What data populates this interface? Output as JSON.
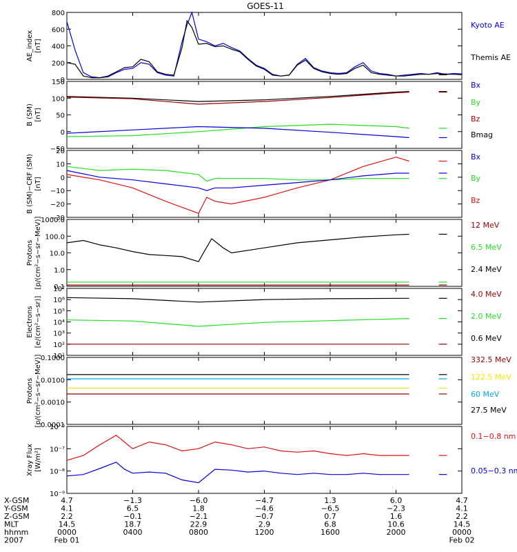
{
  "title": "GOES-11",
  "colors": {
    "black": "#000000",
    "blue": "#0000dd",
    "green": "#22dd22",
    "red": "#dd1111",
    "darkred": "#990000",
    "cyan": "#00a8f0",
    "yellow": "#f2e600",
    "axis": "#000000"
  },
  "chart_data": [
    {
      "id": "ae",
      "type": "line",
      "ylabel_lines": [
        "AE_index",
        "[nT]"
      ],
      "yscale": "linear",
      "ylim": [
        0,
        800
      ],
      "yticks": [
        "0",
        "200",
        "400",
        "600",
        "800"
      ],
      "ytick_values": [
        0,
        200,
        400,
        600,
        800
      ],
      "series": [
        {
          "name": "Kyoto AE",
          "color": "blue",
          "x": [
            0.0,
            0.5,
            1.0,
            1.5,
            2.0,
            2.5,
            3.0,
            3.5,
            4.0,
            4.5,
            5.0,
            5.5,
            6.0,
            6.5,
            7.0,
            7.3,
            7.6,
            8.0,
            8.5,
            9.0,
            9.5,
            10.0,
            10.5,
            11.0,
            11.5,
            12.0,
            12.5,
            13.0,
            13.5,
            14.0,
            14.5,
            15.0,
            15.5,
            16.0,
            16.5,
            17.0,
            17.5,
            18.0,
            18.5,
            19.0,
            19.5,
            20.0,
            20.5,
            21.0,
            21.5,
            22.0,
            22.5,
            23.0,
            23.5,
            24.0
          ],
          "y": [
            690,
            350,
            80,
            30,
            20,
            30,
            80,
            120,
            130,
            200,
            180,
            80,
            50,
            40,
            450,
            650,
            800,
            480,
            450,
            400,
            430,
            380,
            340,
            250,
            170,
            130,
            60,
            40,
            50,
            180,
            250,
            140,
            100,
            80,
            70,
            80,
            150,
            200,
            100,
            70,
            60,
            40,
            50,
            60,
            70,
            60,
            80,
            60,
            70,
            65
          ]
        },
        {
          "name": "Themis AE",
          "color": "black",
          "x": [
            0.0,
            0.5,
            1.0,
            1.5,
            2.0,
            2.5,
            3.0,
            3.5,
            4.0,
            4.5,
            5.0,
            5.5,
            6.0,
            6.5,
            7.0,
            7.3,
            7.6,
            8.0,
            8.5,
            9.0,
            9.5,
            10.0,
            10.5,
            11.0,
            11.5,
            12.0,
            12.5,
            13.0,
            13.5,
            14.0,
            14.5,
            15.0,
            15.5,
            16.0,
            16.5,
            17.0,
            17.5,
            18.0,
            18.5,
            19.0,
            19.5,
            20.0,
            20.5,
            21.0,
            21.5,
            22.0,
            22.5,
            23.0,
            23.5,
            24.0
          ],
          "y": [
            200,
            180,
            40,
            20,
            20,
            40,
            90,
            140,
            150,
            240,
            210,
            90,
            60,
            50,
            380,
            700,
            620,
            420,
            430,
            390,
            400,
            360,
            330,
            240,
            160,
            120,
            50,
            40,
            50,
            170,
            230,
            130,
            90,
            70,
            60,
            70,
            130,
            170,
            80,
            60,
            50,
            40,
            40,
            50,
            60,
            60,
            70,
            60,
            60,
            55
          ]
        }
      ]
    },
    {
      "id": "b_sm",
      "type": "line",
      "ylabel_lines": [
        "B (SM)",
        "[nT]"
      ],
      "yscale": "linear",
      "ylim": [
        -50,
        150
      ],
      "yticks": [
        "−50",
        "0",
        "50",
        "100",
        "150"
      ],
      "ytick_values": [
        -50,
        0,
        50,
        100,
        150
      ],
      "series": [
        {
          "name": "Bmag",
          "color": "black",
          "x": [
            0,
            4,
            8,
            12,
            16,
            20,
            20.8
          ],
          "y": [
            105,
            100,
            90,
            95,
            105,
            118,
            120
          ]
        },
        {
          "name": "Bz",
          "color": "darkred",
          "x": [
            0,
            4,
            8,
            12,
            16,
            20,
            20.8
          ],
          "y": [
            103,
            98,
            82,
            90,
            102,
            116,
            118
          ]
        },
        {
          "name": "By",
          "color": "green",
          "x": [
            0,
            4,
            8,
            12,
            16,
            20,
            20.8
          ],
          "y": [
            -15,
            -12,
            0,
            15,
            22,
            15,
            10
          ]
        },
        {
          "name": "Bx",
          "color": "blue",
          "x": [
            0,
            4,
            8,
            12,
            16,
            20,
            20.8
          ],
          "y": [
            -5,
            5,
            15,
            10,
            -2,
            -15,
            -18
          ]
        }
      ],
      "legend": [
        "Bx",
        "By",
        "Bz",
        "Bmag"
      ]
    },
    {
      "id": "b_crf",
      "type": "line",
      "ylabel_lines": [
        "B (SM)−CRF (SM)",
        "[nT]"
      ],
      "yscale": "linear",
      "ylim": [
        -30,
        20
      ],
      "yticks": [
        "−30",
        "−20",
        "−10",
        "0",
        "10",
        "20"
      ],
      "ytick_values": [
        -30,
        -20,
        -10,
        0,
        10,
        20
      ],
      "series": [
        {
          "name": "Bz",
          "color": "red",
          "x": [
            0,
            2,
            4,
            6,
            8,
            8.5,
            9,
            10,
            12,
            14,
            16,
            18,
            20,
            20.8
          ],
          "y": [
            2,
            -2,
            -8,
            -18,
            -27,
            -15,
            -18,
            -20,
            -15,
            -8,
            -2,
            8,
            15,
            12
          ]
        },
        {
          "name": "By",
          "color": "green",
          "x": [
            0,
            2,
            4,
            6,
            8,
            8.5,
            9,
            10,
            12,
            14,
            16,
            18,
            20,
            20.8
          ],
          "y": [
            8,
            5,
            6,
            5,
            2,
            -3,
            -1,
            -1,
            -1,
            -2,
            -2,
            -1,
            -1,
            -1
          ]
        },
        {
          "name": "Bx",
          "color": "blue",
          "x": [
            0,
            2,
            4,
            6,
            8,
            8.5,
            9,
            10,
            12,
            14,
            16,
            18,
            20,
            20.8
          ],
          "y": [
            5,
            0,
            -2,
            -5,
            -8,
            -10,
            -8,
            -8,
            -6,
            -4,
            -2,
            1,
            3,
            3
          ]
        }
      ],
      "legend": [
        "Bx",
        "By",
        "Bz"
      ]
    },
    {
      "id": "protons_low",
      "type": "line",
      "ylabel_lines": [
        "Protons",
        "[p/(cm²−s−sr−MeV)]"
      ],
      "yscale": "log",
      "ylim": [
        0.1,
        1000
      ],
      "yticks": [
        "0.1",
        "1.0",
        "10.0",
        "100.0",
        "1000.0"
      ],
      "ytick_values": [
        0.1,
        1,
        10,
        100,
        1000
      ],
      "series": [
        {
          "name": "2.4 MeV",
          "color": "black",
          "x": [
            0,
            1,
            2,
            3,
            4,
            5,
            6,
            7,
            8,
            8.4,
            8.8,
            9.5,
            10,
            12,
            14,
            16,
            18,
            20,
            20.8
          ],
          "y": [
            40,
            55,
            30,
            20,
            12,
            8,
            7,
            6,
            3,
            15,
            70,
            20,
            10,
            20,
            40,
            60,
            90,
            120,
            130
          ]
        },
        {
          "name": "6.5 MeV",
          "color": "green",
          "x": [
            0,
            20.8
          ],
          "y": [
            0.18,
            0.18
          ]
        },
        {
          "name": "12 MeV",
          "color": "darkred",
          "x": [
            0,
            20.8
          ],
          "y": [
            0.12,
            0.12
          ]
        }
      ],
      "legend": [
        "12 MeV",
        "6.5 MeV",
        "2.4 MeV"
      ]
    },
    {
      "id": "electrons",
      "type": "line",
      "ylabel_lines": [
        "Electrons",
        "[e/(cm²−s−sr)]"
      ],
      "yscale": "log",
      "ylim": [
        10,
        10000000
      ],
      "yticks": [
        "10¹",
        "10²",
        "10³",
        "10⁴",
        "10⁵",
        "10⁶",
        "10⁷"
      ],
      "ytick_values": [
        10,
        100,
        1000,
        10000,
        100000,
        1000000,
        10000000
      ],
      "series": [
        {
          "name": "0.6 MeV",
          "color": "black",
          "x": [
            0,
            4,
            8,
            12,
            16,
            20.8
          ],
          "y": [
            1500000,
            1200000,
            600000,
            1000000,
            1200000,
            1300000
          ]
        },
        {
          "name": "2.0 MeV",
          "color": "green",
          "x": [
            0,
            4,
            8,
            12,
            16,
            20.8
          ],
          "y": [
            15000,
            12000,
            4000,
            9000,
            13000,
            20000
          ]
        },
        {
          "name": "4.0 MeV",
          "color": "darkred",
          "x": [
            0,
            20.8
          ],
          "y": [
            100,
            100
          ]
        }
      ],
      "legend": [
        "4.0 MeV",
        "2.0 MeV",
        "0.6 MeV"
      ]
    },
    {
      "id": "protons_high",
      "type": "line",
      "ylabel_lines": [
        "Protons",
        "[p/(cm²−s−sr−MeV)]"
      ],
      "yscale": "log",
      "ylim": [
        0.0001,
        0.1
      ],
      "yticks": [
        "0.0001",
        "0.0010",
        "0.0100",
        "0.1000"
      ],
      "ytick_values": [
        0.0001,
        0.001,
        0.01,
        0.1
      ],
      "series": [
        {
          "name": "27.5 MeV",
          "color": "black",
          "x": [
            0,
            20.8
          ],
          "y": [
            0.017,
            0.017
          ]
        },
        {
          "name": "60 MeV",
          "color": "cyan",
          "x": [
            0,
            20.8
          ],
          "y": [
            0.011,
            0.011
          ]
        },
        {
          "name": "122.5 MeV",
          "color": "yellow",
          "x": [
            0,
            20.8
          ],
          "y": [
            0.0042,
            0.0042
          ]
        },
        {
          "name": "332.5 MeV",
          "color": "darkred",
          "x": [
            0,
            20.8
          ],
          "y": [
            0.0023,
            0.0023
          ]
        }
      ],
      "legend": [
        "332.5 MeV",
        "122.5 MeV",
        "60 MeV",
        "27.5 MeV"
      ]
    },
    {
      "id": "xray",
      "type": "line",
      "ylabel_lines": [
        "Xray Flux",
        "[W/m²]"
      ],
      "yscale": "log",
      "ylim": [
        1e-09,
        1e-06
      ],
      "yticks": [
        "10⁻⁹",
        "10⁻⁸",
        "10⁻⁷",
        "10⁻⁶"
      ],
      "ytick_values": [
        1e-09,
        1e-08,
        1e-07,
        1e-06
      ],
      "series": [
        {
          "name": "0.1−0.8 nm",
          "color": "red",
          "x": [
            0,
            1,
            2,
            3,
            3.5,
            4,
            5,
            6,
            7,
            8,
            9,
            10,
            11,
            12,
            13,
            14,
            15,
            16,
            17,
            18,
            19,
            20,
            20.8
          ],
          "y": [
            3e-08,
            5e-08,
            1.5e-07,
            4e-07,
            2e-07,
            1e-07,
            2e-07,
            1.5e-07,
            8e-08,
            1e-07,
            2e-07,
            1.5e-07,
            1e-07,
            1.2e-07,
            8e-08,
            7e-08,
            8e-08,
            6e-08,
            5e-08,
            6e-08,
            5e-08,
            5e-08,
            5e-08
          ]
        },
        {
          "name": "0.05−0.3 nm",
          "color": "blue",
          "x": [
            0,
            1,
            2,
            3,
            3.5,
            4,
            5,
            6,
            7,
            8,
            9,
            10,
            11,
            12,
            13,
            14,
            15,
            16,
            17,
            18,
            19,
            20,
            20.8
          ],
          "y": [
            6e-09,
            7e-09,
            1.3e-08,
            2.5e-08,
            1.2e-08,
            8e-09,
            9e-09,
            8e-09,
            4e-09,
            3e-09,
            1.2e-08,
            1.1e-08,
            9e-09,
            1e-08,
            8e-09,
            7e-09,
            8e-09,
            7e-09,
            7e-09,
            8e-09,
            7e-09,
            7e-09,
            7e-09
          ]
        }
      ],
      "legend": [
        "0.1−0.8 nm",
        "0.05−0.3 nm"
      ]
    }
  ],
  "x_axis": {
    "rows": [
      {
        "label": "X-GSM",
        "values": [
          "4.7",
          "−1.3",
          "−6.0",
          "−4.7",
          "1.3",
          "6.0",
          "4.7"
        ]
      },
      {
        "label": "Y-GSM",
        "values": [
          "4.1",
          "6.5",
          "1.8",
          "−4.6",
          "−6.5",
          "−2.3",
          "4.1"
        ]
      },
      {
        "label": "Z-GSM",
        "values": [
          "2.2",
          "−0.1",
          "−2.1",
          "−0.7",
          "0.7",
          "1.6",
          "2.2"
        ]
      },
      {
        "label": "MLT",
        "values": [
          "14.5",
          "18.7",
          "22.9",
          "2.9",
          "6.8",
          "10.6",
          "14.5"
        ]
      },
      {
        "label": "hhmm",
        "values": [
          "0000",
          "0400",
          "0800",
          "1200",
          "1600",
          "2000",
          "0000"
        ]
      },
      {
        "label": "2007",
        "values": [
          "Feb 01",
          "",
          "",
          "",
          "",
          "",
          "Feb 02"
        ]
      }
    ],
    "hours": [
      0,
      4,
      8,
      12,
      16,
      20,
      24
    ],
    "xlim": [
      0,
      24
    ]
  }
}
